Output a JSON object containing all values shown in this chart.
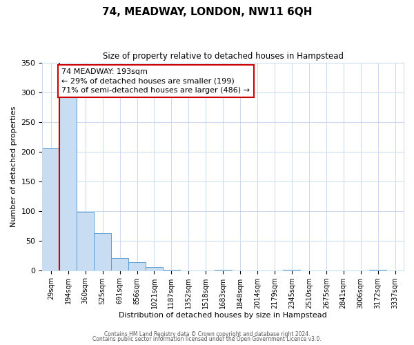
{
  "title": "74, MEADWAY, LONDON, NW11 6QH",
  "subtitle": "Size of property relative to detached houses in Hampstead",
  "xlabel": "Distribution of detached houses by size in Hampstead",
  "ylabel": "Number of detached properties",
  "bar_labels": [
    "29sqm",
    "194sqm",
    "360sqm",
    "525sqm",
    "691sqm",
    "856sqm",
    "1021sqm",
    "1187sqm",
    "1352sqm",
    "1518sqm",
    "1683sqm",
    "1848sqm",
    "2014sqm",
    "2179sqm",
    "2345sqm",
    "2510sqm",
    "2675sqm",
    "2841sqm",
    "3006sqm",
    "3172sqm",
    "3337sqm"
  ],
  "bar_heights": [
    205,
    292,
    98,
    62,
    21,
    13,
    5,
    1,
    0,
    0,
    1,
    0,
    0,
    0,
    1,
    0,
    0,
    0,
    0,
    1,
    0
  ],
  "bar_color": "#c9ddf2",
  "bar_edge_color": "#5b9bd5",
  "annotation_box_text": "74 MEADWAY: 193sqm\n← 29% of detached houses are smaller (199)\n71% of semi-detached houses are larger (486) →",
  "annotation_box_facecolor": "white",
  "annotation_box_edgecolor": "#cc0000",
  "red_line_color": "#cc0000",
  "footer_line1": "Contains HM Land Registry data © Crown copyright and database right 2024.",
  "footer_line2": "Contains public sector information licensed under the Open Government Licence v3.0.",
  "ylim": [
    0,
    350
  ],
  "figsize": [
    6.0,
    5.0
  ],
  "dpi": 100,
  "grid_color": "#c8daf0",
  "background_color": "#ffffff",
  "title_fontsize": 11,
  "subtitle_fontsize": 8.5,
  "ylabel_fontsize": 8,
  "xlabel_fontsize": 8,
  "tick_fontsize": 7,
  "footer_fontsize": 5.5,
  "annot_fontsize": 8
}
